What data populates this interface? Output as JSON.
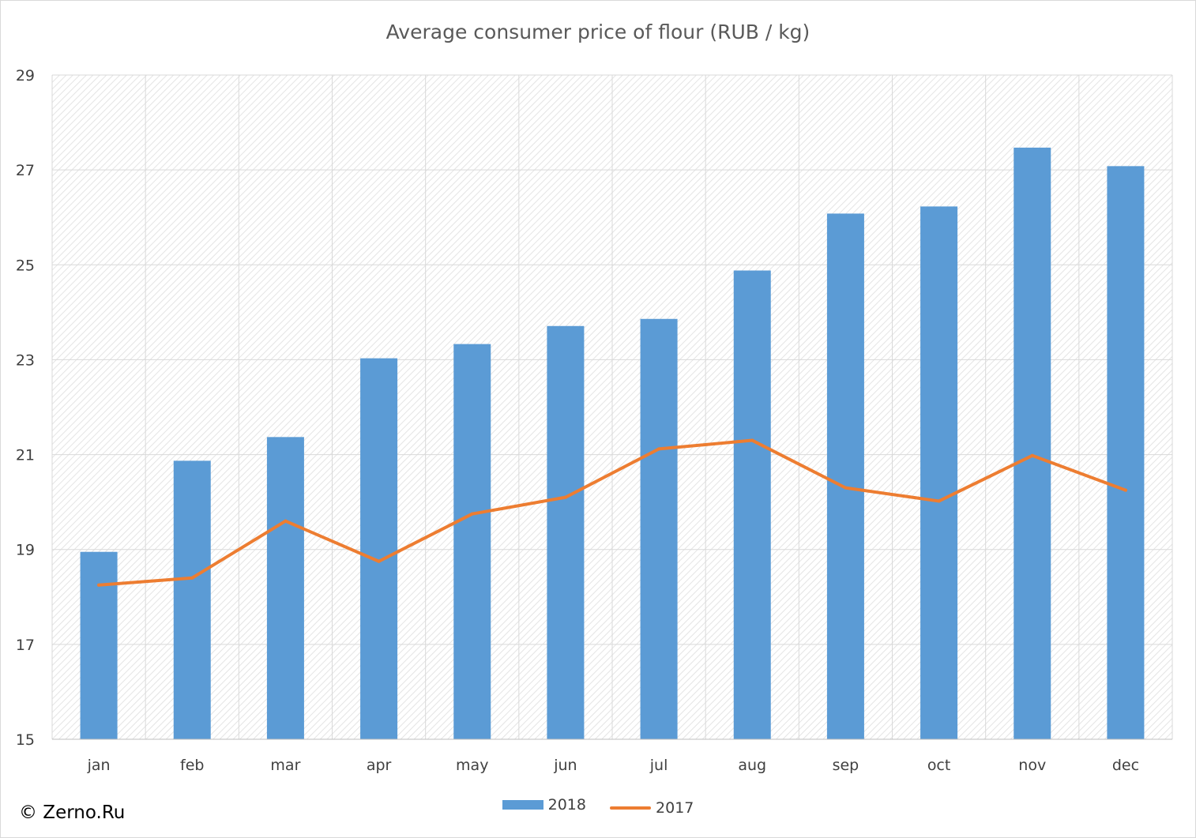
{
  "chart_data": {
    "type": "bar",
    "title": "Average consumer price of flour (RUB / kg)",
    "categories": [
      "jan",
      "feb",
      "mar",
      "apr",
      "may",
      "jun",
      "jul",
      "aug",
      "sep",
      "oct",
      "nov",
      "dec"
    ],
    "series": [
      {
        "name": "2018",
        "type": "bar",
        "color": "#5b9bd5",
        "values": [
          18.95,
          20.87,
          21.37,
          23.03,
          23.33,
          23.71,
          23.86,
          24.88,
          26.08,
          26.23,
          27.47,
          27.08
        ]
      },
      {
        "name": "2017",
        "type": "line",
        "color": "#ed7d31",
        "values": [
          18.25,
          18.4,
          19.6,
          18.75,
          19.75,
          20.1,
          21.12,
          21.3,
          20.3,
          20.02,
          20.98,
          20.25
        ]
      }
    ],
    "ylim": [
      15,
      29
    ],
    "yticks": [
      "15",
      "17",
      "19",
      "21",
      "23",
      "25",
      "27",
      "29"
    ],
    "grid": true,
    "legend_position": "bottom-center"
  },
  "watermark": "© Zerno.Ru"
}
